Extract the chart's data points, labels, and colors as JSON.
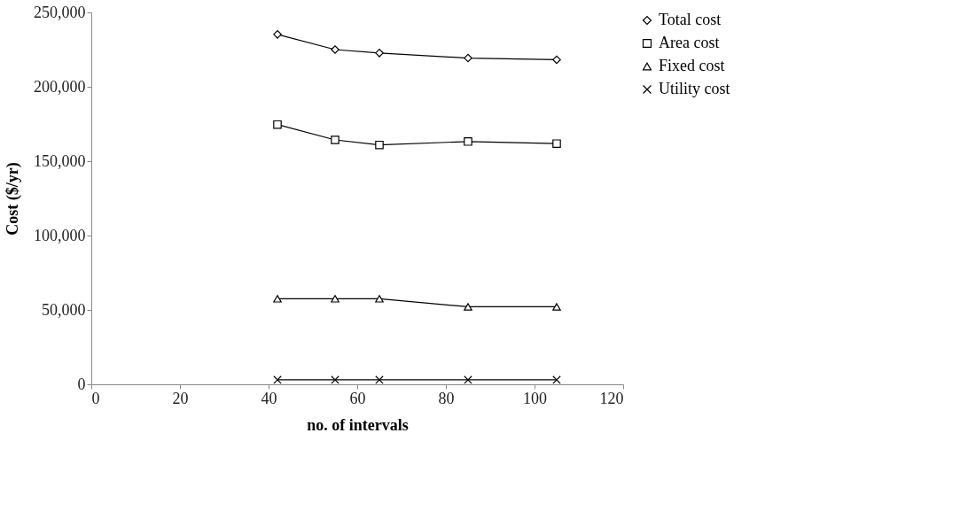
{
  "chart_data": {
    "type": "line",
    "xlabel": "no. of intervals",
    "ylabel": "Cost ($/yr)",
    "x": [
      42,
      55,
      65,
      85,
      105
    ],
    "xlim": [
      0,
      120
    ],
    "xticks": [
      0,
      20,
      40,
      60,
      80,
      100,
      120
    ],
    "ylim": [
      0,
      250000
    ],
    "yticks": [
      0,
      {
        "value": 50000,
        "label": "50,000"
      },
      {
        "value": 100000,
        "label": "100,000"
      },
      {
        "value": 150000,
        "label": "150,000"
      },
      {
        "value": 200000,
        "label": "200,000"
      },
      {
        "value": 250000,
        "label": "250,000"
      }
    ],
    "grid": false,
    "legend": "right",
    "line_style": "solid",
    "series": [
      {
        "name": "Total cost",
        "color": "#000000",
        "marker": "diamond",
        "values": [
          235200,
          225000,
          222700,
          219300,
          218200
        ]
      },
      {
        "name": "Area cost",
        "color": "#000000",
        "marker": "square",
        "values": [
          174600,
          164300,
          160900,
          163200,
          161800
        ]
      },
      {
        "name": "Fixed cost",
        "color": "#000000",
        "marker": "triangle",
        "values": [
          57500,
          57500,
          57500,
          52100,
          52100
        ]
      },
      {
        "name": "Utility cost",
        "color": "#000000",
        "marker": "cross",
        "values": [
          3000,
          3000,
          3000,
          3000,
          3000
        ]
      }
    ]
  }
}
